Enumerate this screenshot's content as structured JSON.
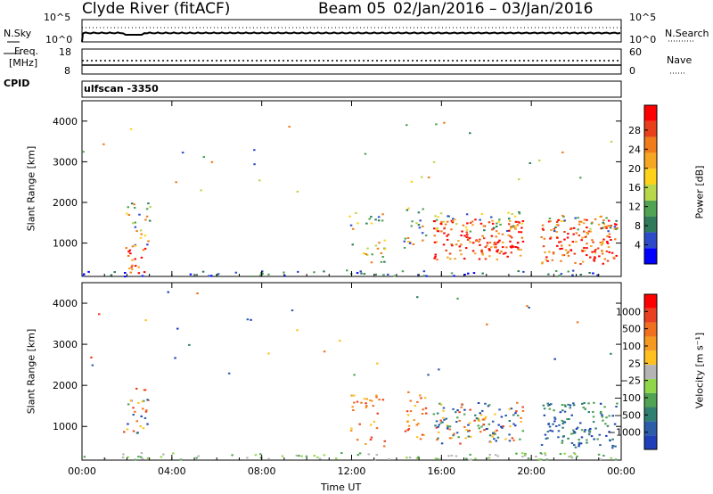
{
  "header": {
    "station": "Clyde River (fitACF)",
    "beam": "Beam 05",
    "date_range": "02/Jan/2016 – 03/Jan/2016"
  },
  "top_panel": {
    "left_label": "N.Sky",
    "right_label": "N.Search",
    "left_ticks": [
      "10^5",
      "10^0"
    ],
    "right_ticks": [
      "10^5",
      "10^0"
    ]
  },
  "freq_panel": {
    "left_label_1": "Freq.",
    "left_label_2": "[MHz]",
    "left_ticks": [
      "18",
      "8"
    ],
    "right_label": "Nave",
    "right_ticks": [
      "60",
      "0"
    ],
    "cpid_label": "CPID",
    "cpid_value": "ulfscan -3350"
  },
  "chart_data": [
    {
      "type": "heatmap",
      "name": "power",
      "ylabel": "Slant Range [km]",
      "xlabel": "Time UT",
      "x_tick_labels": [
        "00:00",
        "04:00",
        "08:00",
        "12:00",
        "16:00",
        "20:00",
        "00:00"
      ],
      "y_tick_labels": [
        "1000",
        "2000",
        "3000",
        "4000"
      ],
      "ylim": [
        180,
        4500
      ],
      "xlim_hours": [
        0,
        24
      ],
      "colorbar": {
        "label": "Power [dB]",
        "ticks": [
          "4",
          "8",
          "12",
          "16",
          "20",
          "24",
          "28"
        ],
        "range": [
          0,
          30
        ],
        "colors": [
          "#0000ff",
          "#2d4bc8",
          "#2f7a5a",
          "#4fa352",
          "#b8d74a",
          "#ffd21a",
          "#f5a623",
          "#f07b1a",
          "#e8401a",
          "#ff0000"
        ]
      }
    },
    {
      "type": "heatmap",
      "name": "velocity",
      "ylabel": "Slant Range [km]",
      "xlabel": "Time UT",
      "x_tick_labels": [
        "00:00",
        "04:00",
        "08:00",
        "12:00",
        "16:00",
        "20:00",
        "00:00"
      ],
      "y_tick_labels": [
        "1000",
        "2000",
        "3000",
        "4000"
      ],
      "ylim": [
        180,
        4500
      ],
      "xlim_hours": [
        0,
        24
      ],
      "colorbar": {
        "label": "Velocity [m s⁻¹]",
        "ticks": [
          "1000",
          "500",
          "100",
          "25",
          "−25",
          "−100",
          "−500",
          "−1000"
        ],
        "colors": [
          "#1f3fb8",
          "#2c5da8",
          "#2f8070",
          "#4fa352",
          "#8fd64a",
          "#b4b4b4",
          "#ffc020",
          "#f59a20",
          "#f07020",
          "#e84020",
          "#ff0000"
        ]
      }
    }
  ]
}
